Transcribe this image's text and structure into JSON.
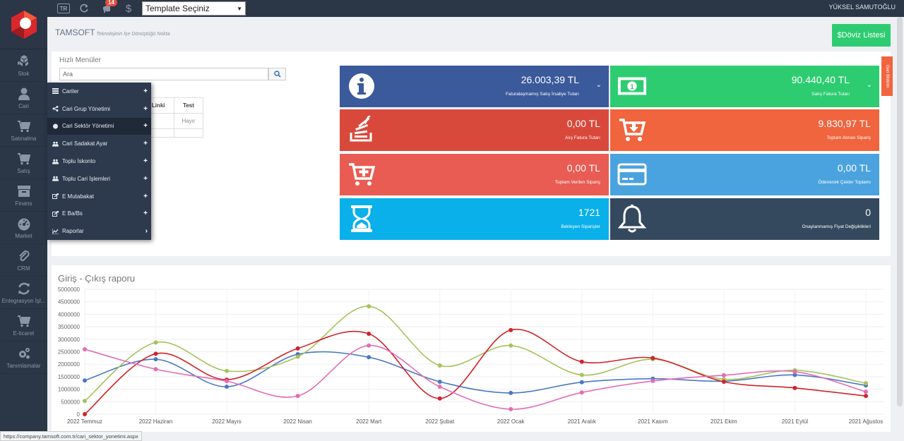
{
  "sidebar": {
    "items": [
      {
        "label": "Stok",
        "icon": "cubes-icon"
      },
      {
        "label": "Cari",
        "icon": "user-icon"
      },
      {
        "label": "Satınalma",
        "icon": "cart-icon"
      },
      {
        "label": "Satış",
        "icon": "cart-icon"
      },
      {
        "label": "Finans",
        "icon": "archive-icon"
      },
      {
        "label": "Market",
        "icon": "dashboard-icon"
      },
      {
        "label": "CRM",
        "icon": "paperclip-icon"
      },
      {
        "label": "Entegrasyon İşl...",
        "icon": "refresh-icon"
      },
      {
        "label": "E-ticaret",
        "icon": "cart-icon"
      },
      {
        "label": "Tanımlamalar",
        "icon": "gears-icon"
      }
    ]
  },
  "topbar": {
    "lang": "TR",
    "notif_count": "14",
    "template_select": "Template Seçiniz",
    "user": "YÜKSEL SAMUTOĞLU"
  },
  "header": {
    "brand": "TAMSOFT",
    "tagline": "Teknolojinin İşe Dönüştüğü Nokta",
    "doviz_button": "$Döviz Listesi"
  },
  "quick_menu": {
    "label": "Hızlı Menüler",
    "search_placeholder": "Ara",
    "table_headers": [
      "r Linki",
      "Test"
    ],
    "table_value": "Hayır"
  },
  "dropdown": {
    "items": [
      {
        "label": "Cariler",
        "icon": "list-icon",
        "suffix": "+"
      },
      {
        "label": "Cari Grup Yönetimi",
        "icon": "share-icon",
        "suffix": "+"
      },
      {
        "label": "Cari Sektör Yönetimi",
        "icon": "circle-icon",
        "suffix": "+"
      },
      {
        "label": "Cari Sadakat Ayar",
        "icon": "users-icon",
        "suffix": "+"
      },
      {
        "label": "Toplu İskonto",
        "icon": "users-icon",
        "suffix": "+"
      },
      {
        "label": "Toplu Cari İşlemleri",
        "icon": "users-icon",
        "suffix": "+"
      },
      {
        "label": "E Mutabakat",
        "icon": "share-square-icon",
        "suffix": "+"
      },
      {
        "label": "E Ba/Bs",
        "icon": "share-square-icon",
        "suffix": "+"
      },
      {
        "label": "Raporlar",
        "icon": "line-chart-icon",
        "suffix": "›"
      }
    ]
  },
  "tiles": [
    {
      "value": "26.003,39 TL",
      "label": "Faturalaşmamış Satış İrsaliye Tutarı",
      "icon": "info-icon",
      "color": "#3a5a9b"
    },
    {
      "value": "90.440,40 TL",
      "label": "Satış Fatura Tutarı",
      "icon": "money-icon",
      "color": "#2ecc71"
    },
    {
      "value": "0,00 TL",
      "label": "Alış Fatura Tutarı",
      "icon": "stack-icon",
      "color": "#d9493b"
    },
    {
      "value": "9.830,97 TL",
      "label": "Toplam Alınan Sipariş",
      "icon": "cart-down-icon",
      "color": "#f0643e"
    },
    {
      "value": "0,00 TL",
      "label": "Toplam Verilen Sipariş",
      "icon": "cart-plus-icon",
      "color": "#e85c53"
    },
    {
      "value": "0,00 TL",
      "label": "Ödenecek Çekler Toplamı",
      "icon": "card-icon",
      "color": "#4aa3df"
    },
    {
      "value": "1721",
      "label": "Bekleyen Siparişler",
      "icon": "hourglass-icon",
      "color": "#0ab0ea"
    },
    {
      "value": "0",
      "label": "Onaylanmamış Fiyat Değişiklikleri",
      "icon": "bell-icon",
      "color": "#34495e"
    }
  ],
  "side_tab": "Geri Bildirim",
  "status_url": "https://company.tamsoft.com.tr/cari_sektor_yonetimi.aspx",
  "chart_data": {
    "type": "line",
    "title": "Giriş - Çıkış raporu",
    "categories": [
      "2022 Temmuz",
      "2022 Haziran",
      "2022 Mayıs",
      "2022 Nisan",
      "2022 Mart",
      "2022 Şubat",
      "2022 Ocak",
      "2021 Aralık",
      "2021 Kasım",
      "2021 Ekim",
      "2021 Eylül",
      "2021 Ağustos"
    ],
    "yticks": [
      "5000000",
      "4500000",
      "4000000",
      "3500000",
      "3000000",
      "2500000",
      "2000000",
      "1500000",
      "1000000",
      "500000",
      "0"
    ],
    "ylim": [
      0,
      5000000
    ],
    "series": [
      {
        "color": "#4a79c4",
        "values": [
          1350000,
          2200000,
          1100000,
          2400000,
          2280000,
          1300000,
          850000,
          1280000,
          1420000,
          1320000,
          1570000,
          1150000
        ]
      },
      {
        "color": "#a6c25a",
        "values": [
          530000,
          2870000,
          1730000,
          2300000,
          4320000,
          1950000,
          2750000,
          1570000,
          2200000,
          1400000,
          1760000,
          1240000
        ]
      },
      {
        "color": "#d0232a",
        "values": [
          0,
          2420000,
          1380000,
          2630000,
          3220000,
          630000,
          3370000,
          2100000,
          2250000,
          1300000,
          1050000,
          730000
        ]
      },
      {
        "color": "#e26db6",
        "values": [
          2600000,
          1800000,
          1320000,
          730000,
          2750000,
          1100000,
          200000,
          870000,
          1330000,
          1560000,
          1700000,
          900000
        ]
      }
    ]
  }
}
